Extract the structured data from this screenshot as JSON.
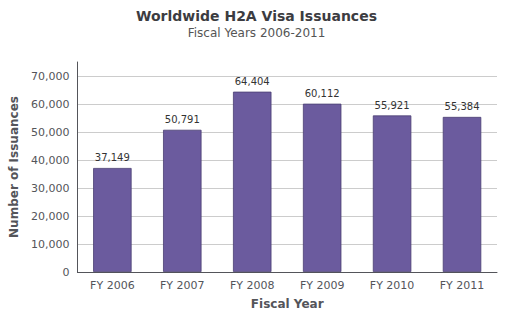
{
  "chart_data": {
    "type": "bar",
    "title": "Worldwide H2A Visa Issuances",
    "subtitle": "Fiscal Years 2006-2011",
    "xlabel": "Fiscal Year",
    "ylabel": "Number of Issuances",
    "categories": [
      "FY 2006",
      "FY 2007",
      "FY 2008",
      "FY 2009",
      "FY 2010",
      "FY 2011"
    ],
    "values": [
      37149,
      50791,
      64404,
      60112,
      55921,
      55384
    ],
    "value_labels": [
      "37,149",
      "50,791",
      "64,404",
      "60,112",
      "55,921",
      "55,384"
    ],
    "data_labels": true,
    "color": "#6B5B9E",
    "ylim": [
      0,
      75000
    ],
    "yticks": [
      0,
      {
        "value": 10000,
        "label": "10,000"
      },
      {
        "value": 20000,
        "label": "20,000"
      },
      {
        "value": 30000,
        "label": "30,000"
      },
      {
        "value": 40000,
        "label": "40,000"
      },
      {
        "value": 50000,
        "label": "50,000"
      },
      {
        "value": 60000,
        "label": "60,000"
      },
      {
        "value": 70000,
        "label": "70,000"
      }
    ],
    "grid": true
  }
}
